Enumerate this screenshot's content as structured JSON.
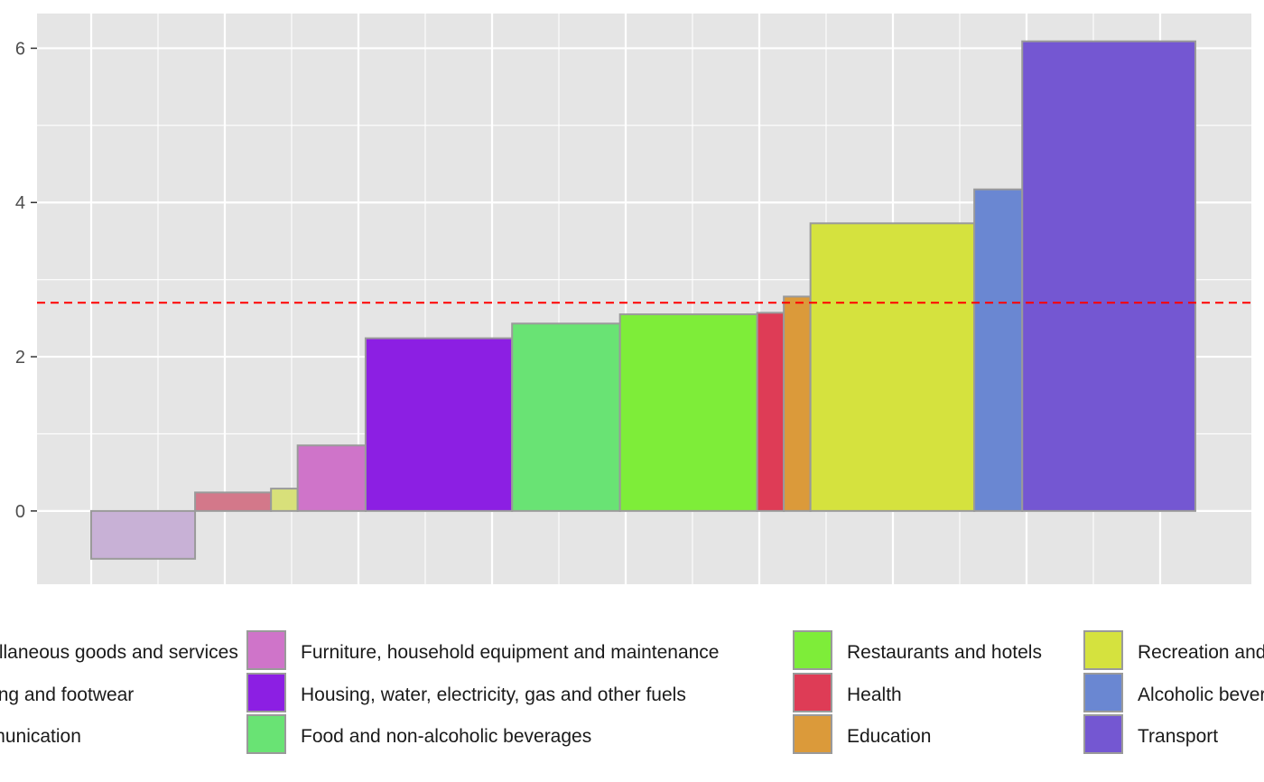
{
  "chart_data": {
    "type": "bar",
    "title": "",
    "xlabel": "",
    "ylabel": "",
    "ylim": [
      -0.95,
      6.45
    ],
    "y_ticks": [
      0,
      2,
      4,
      6
    ],
    "grid": true,
    "legend_position": "bottom",
    "reference_line": {
      "value": 2.7,
      "color": "#ff0000",
      "style": "dashed"
    },
    "categories": [
      "Miscellaneous goods and services",
      "Clothing and footwear",
      "Communication",
      "Furniture, household equipment and maintenance",
      "Housing, water, electricity, gas and other fuels",
      "Food and non-alcoholic beverages",
      "Restaurants and hotels",
      "Health",
      "Education",
      "Recreation and culture",
      "Alcoholic beverages, tobacco and narcotics",
      "Transport"
    ],
    "values": [
      -0.62,
      0.24,
      0.29,
      0.85,
      2.24,
      2.43,
      2.55,
      2.57,
      2.78,
      3.73,
      4.17,
      6.09
    ],
    "weights": [
      78,
      57,
      20,
      51,
      110,
      81,
      103,
      20,
      20,
      123,
      36,
      130
    ],
    "colors": [
      "#c8b1d6",
      "#d3788a",
      "#d8e07a",
      "#cf74c9",
      "#8c1fe3",
      "#69e374",
      "#7eed39",
      "#de3c56",
      "#db9a3a",
      "#d5e23e",
      "#6a87d2",
      "#7457d2"
    ],
    "legend": {
      "columns": [
        [
          "Miscellaneous goods and services",
          "Clothing and footwear",
          "Communication"
        ],
        [
          "Furniture, household equipment and maintenance",
          "Housing, water, electricity, gas and other fuels",
          "Food and non-alcoholic beverages"
        ],
        [
          "Restaurants and hotels",
          "Health",
          "Education"
        ],
        [
          "Recreation and culture",
          "Alcoholic beverages, tobacco and narcotics",
          "Transport"
        ]
      ],
      "colors": [
        [
          "#c8b1d6",
          "#d3788a",
          "#d8e07a"
        ],
        [
          "#cf74c9",
          "#8c1fe3",
          "#69e374"
        ],
        [
          "#7eed39",
          "#de3c56",
          "#db9a3a"
        ],
        [
          "#d5e23e",
          "#6a87d2",
          "#7457d2"
        ]
      ]
    }
  }
}
